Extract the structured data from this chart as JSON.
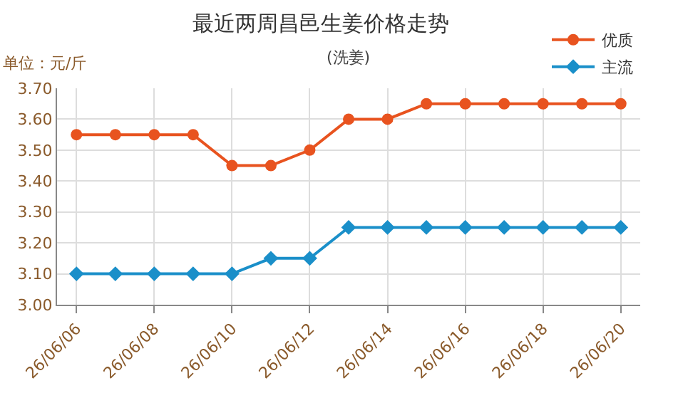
{
  "chart_data": {
    "type": "line",
    "title": "最近两周昌邑生姜价格走势",
    "subtitle": "(洗姜)",
    "ylabel": "单位：元/斤",
    "categories": [
      "26/06/06",
      null,
      "26/06/08",
      null,
      "26/06/10",
      null,
      "26/06/12",
      null,
      "26/06/14",
      null,
      "26/06/16",
      null,
      "26/06/18",
      null,
      "26/06/20"
    ],
    "series": [
      {
        "name": "优质",
        "color": "#e8531f",
        "marker": "circle",
        "values": [
          3.55,
          3.55,
          3.55,
          3.55,
          3.45,
          3.45,
          3.5,
          3.6,
          3.6,
          3.65,
          3.65,
          3.65,
          3.65,
          3.65,
          3.65
        ]
      },
      {
        "name": "主流",
        "color": "#1a8fc9",
        "marker": "diamond",
        "values": [
          3.1,
          3.1,
          3.1,
          3.1,
          3.1,
          3.15,
          3.15,
          3.25,
          3.25,
          3.25,
          3.25,
          3.25,
          3.25,
          3.25,
          3.25
        ]
      }
    ],
    "ylim": [
      3.0,
      3.7
    ],
    "yticks": [
      {
        "value": 3.0,
        "label": "3.00"
      },
      {
        "value": 3.1,
        "label": "3.10"
      },
      {
        "value": 3.2,
        "label": "3.20"
      },
      {
        "value": 3.3,
        "label": "3.30"
      },
      {
        "value": 3.4,
        "label": "3.40"
      },
      {
        "value": 3.5,
        "label": "3.50"
      },
      {
        "value": 3.6,
        "label": "3.60"
      },
      {
        "value": 3.7,
        "label": "3.70"
      }
    ],
    "grid": true,
    "legend": "top right",
    "line_style": "solid"
  }
}
